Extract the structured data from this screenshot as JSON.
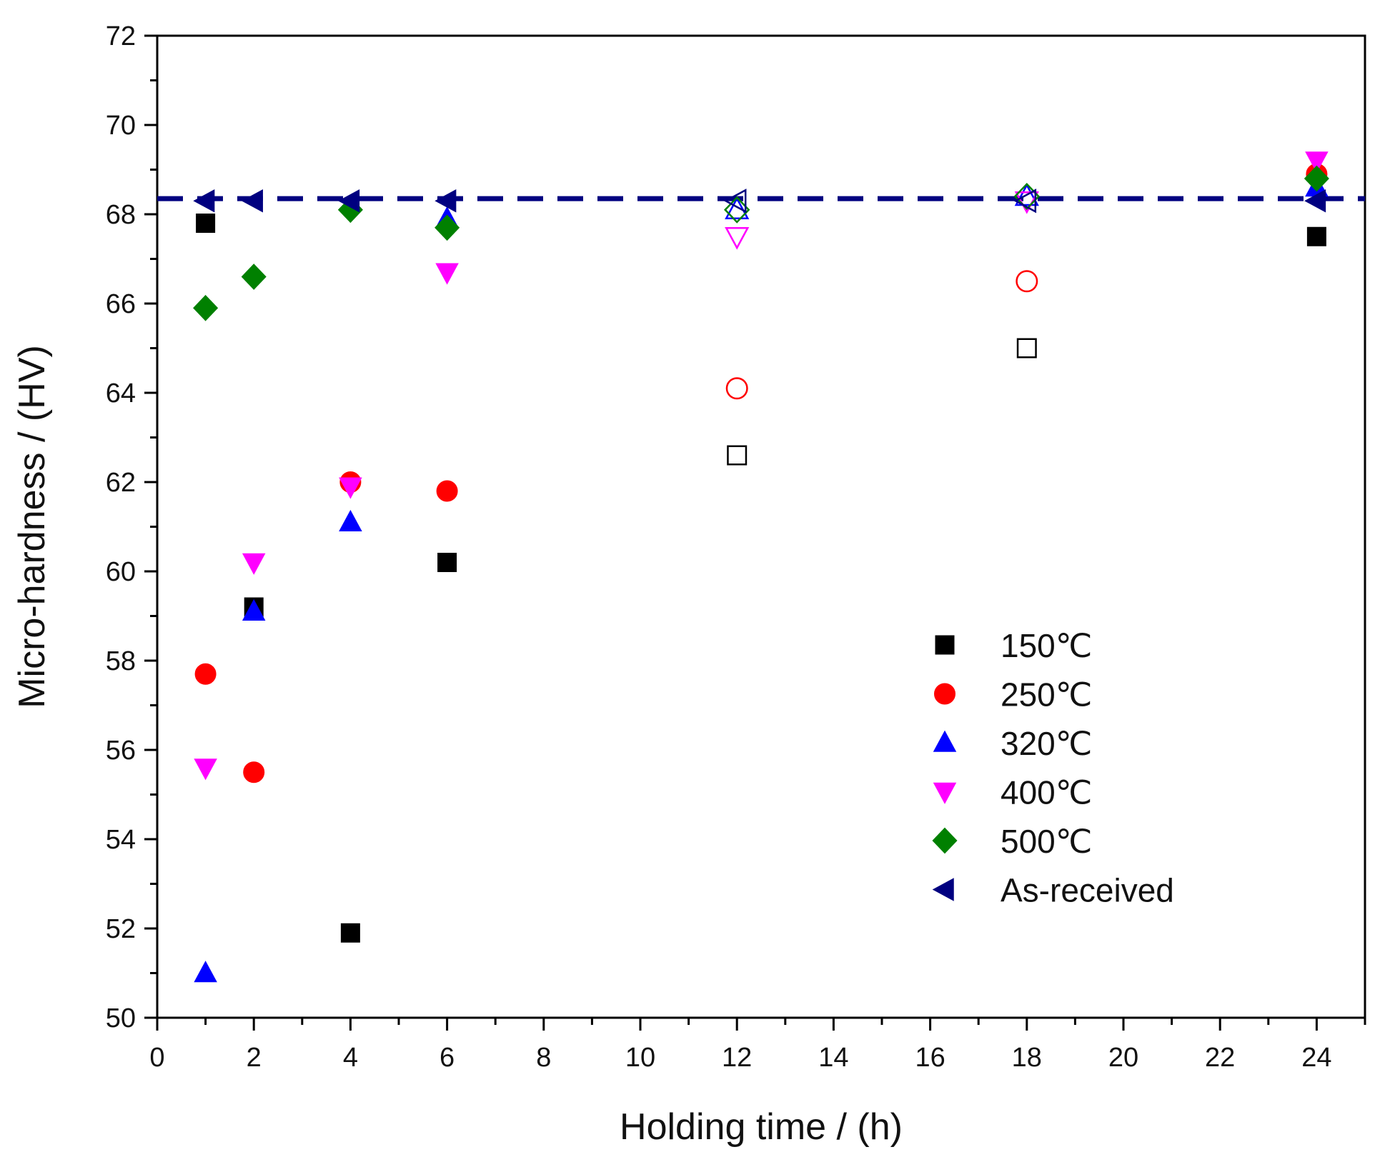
{
  "chart_data": {
    "type": "scatter",
    "xlabel": "Holding time / (h)",
    "ylabel": "Micro-hardness / (HV)",
    "xlim": [
      0,
      25
    ],
    "ylim": [
      50,
      72
    ],
    "xticks": [
      0,
      2,
      4,
      6,
      8,
      10,
      12,
      14,
      16,
      18,
      20,
      22,
      24
    ],
    "yticks": [
      50,
      52,
      54,
      56,
      58,
      60,
      62,
      64,
      66,
      68,
      70,
      72
    ],
    "grid": false,
    "legend_position": "lower-right",
    "series": [
      {
        "name": "150℃",
        "marker": "square",
        "color": "#000000",
        "points": [
          {
            "x": 1,
            "y": 67.8,
            "filled": true
          },
          {
            "x": 2,
            "y": 59.2,
            "filled": true
          },
          {
            "x": 4,
            "y": 51.9,
            "filled": true
          },
          {
            "x": 6,
            "y": 60.2,
            "filled": true
          },
          {
            "x": 12,
            "y": 62.6,
            "filled": false
          },
          {
            "x": 18,
            "y": 65.0,
            "filled": false
          },
          {
            "x": 24,
            "y": 67.5,
            "filled": true
          }
        ]
      },
      {
        "name": "250℃",
        "marker": "circle",
        "color": "#ff0000",
        "points": [
          {
            "x": 1,
            "y": 57.7,
            "filled": true
          },
          {
            "x": 2,
            "y": 55.5,
            "filled": true
          },
          {
            "x": 4,
            "y": 62.0,
            "filled": true
          },
          {
            "x": 6,
            "y": 61.8,
            "filled": true
          },
          {
            "x": 12,
            "y": 64.1,
            "filled": false
          },
          {
            "x": 18,
            "y": 66.5,
            "filled": false
          },
          {
            "x": 24,
            "y": 68.9,
            "filled": true
          }
        ]
      },
      {
        "name": "320℃",
        "marker": "triangle-up",
        "color": "#0000ff",
        "points": [
          {
            "x": 1,
            "y": 51.0,
            "filled": true
          },
          {
            "x": 2,
            "y": 59.1,
            "filled": true
          },
          {
            "x": 4,
            "y": 61.1,
            "filled": true
          },
          {
            "x": 6,
            "y": 67.9,
            "filled": true
          },
          {
            "x": 12,
            "y": 68.1,
            "filled": false
          },
          {
            "x": 18,
            "y": 68.4,
            "filled": false
          },
          {
            "x": 24,
            "y": 68.6,
            "filled": true
          }
        ]
      },
      {
        "name": "400℃",
        "marker": "triangle-down",
        "color": "#ff00ff",
        "points": [
          {
            "x": 1,
            "y": 55.6,
            "filled": true
          },
          {
            "x": 2,
            "y": 60.2,
            "filled": true
          },
          {
            "x": 4,
            "y": 61.9,
            "filled": true
          },
          {
            "x": 6,
            "y": 66.7,
            "filled": true
          },
          {
            "x": 12,
            "y": 67.5,
            "filled": false
          },
          {
            "x": 18,
            "y": 68.3,
            "filled": false
          },
          {
            "x": 24,
            "y": 69.2,
            "filled": true
          }
        ]
      },
      {
        "name": "500℃",
        "marker": "diamond",
        "color": "#008000",
        "points": [
          {
            "x": 1,
            "y": 65.9,
            "filled": true
          },
          {
            "x": 2,
            "y": 66.6,
            "filled": true
          },
          {
            "x": 4,
            "y": 68.1,
            "filled": true
          },
          {
            "x": 6,
            "y": 67.7,
            "filled": true
          },
          {
            "x": 12,
            "y": 68.1,
            "filled": false
          },
          {
            "x": 18,
            "y": 68.4,
            "filled": false
          },
          {
            "x": 24,
            "y": 68.8,
            "filled": true
          }
        ]
      },
      {
        "name": "As-received",
        "marker": "triangle-left",
        "color": "#000080",
        "points": [
          {
            "x": 1,
            "y": 68.3,
            "filled": true
          },
          {
            "x": 2,
            "y": 68.3,
            "filled": true
          },
          {
            "x": 4,
            "y": 68.3,
            "filled": true
          },
          {
            "x": 6,
            "y": 68.3,
            "filled": true
          },
          {
            "x": 12,
            "y": 68.3,
            "filled": false
          },
          {
            "x": 18,
            "y": 68.3,
            "filled": false
          },
          {
            "x": 24,
            "y": 68.3,
            "filled": true
          }
        ]
      }
    ],
    "reference_line": {
      "y": 68.35,
      "style": "dashed",
      "color": "#000080"
    }
  }
}
